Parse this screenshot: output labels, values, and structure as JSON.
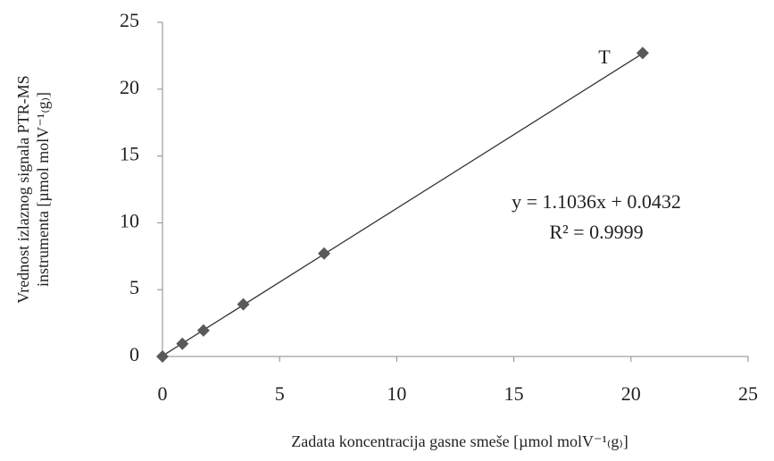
{
  "chart_data": {
    "type": "scatter",
    "x_label": "Zadata koncentracija gasne smeše [µmol molV⁻¹₍g₎]",
    "y_label": [
      "Vrednost izlaznog signala PTR-MS",
      "instrumenta [µmol molV⁻¹₍g₎]"
    ],
    "annotations": [
      "T",
      "y = 1.1036x + 0.0432",
      "R² = 0.9999"
    ],
    "series": [
      {
        "color": "#595959",
        "x": [
          0,
          0.85,
          1.75,
          3.45,
          6.9,
          20.5
        ],
        "values": [
          0,
          0.95,
          1.95,
          3.9,
          7.7,
          22.7
        ]
      }
    ],
    "trendline": {
      "color": "#333333",
      "x": [
        0,
        20.5
      ],
      "values": [
        0.0432,
        22.67
      ]
    },
    "xlim": [
      0,
      25
    ],
    "xticks": [
      0,
      5,
      10,
      15,
      20,
      25
    ],
    "ylim": [
      0,
      25
    ],
    "yticks": [
      0,
      5,
      10,
      15,
      20,
      25
    ]
  }
}
